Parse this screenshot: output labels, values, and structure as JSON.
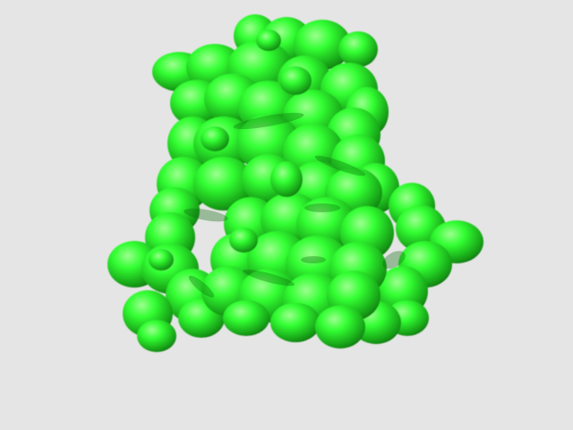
{
  "viewer": {
    "background_color": "#e5e5e5",
    "surface_color": "#33ff33",
    "surface_highlight_color": "#9dff8f",
    "surface_shadow_color": "#159a15",
    "surface_deep_shadow_color": "#0c6b0c",
    "subject": "molecular-surface"
  }
}
